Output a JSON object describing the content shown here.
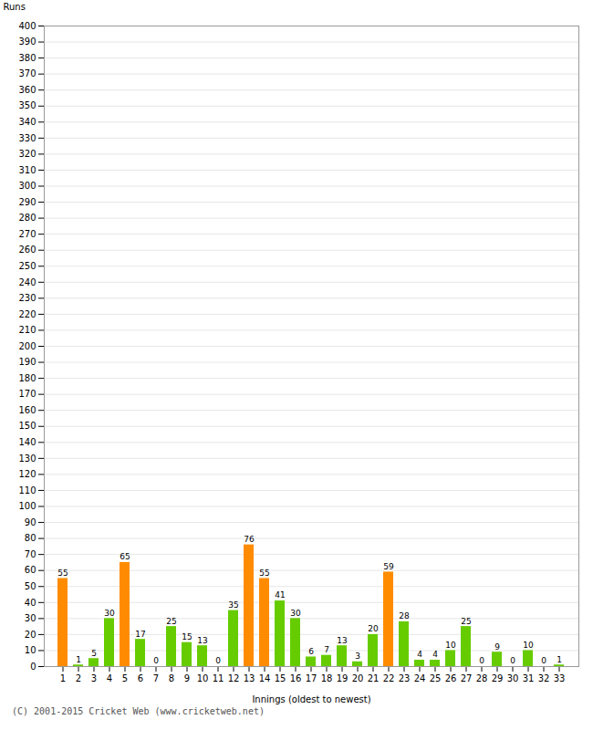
{
  "chart_data": {
    "type": "bar",
    "categories": [
      "1",
      "2",
      "3",
      "4",
      "5",
      "6",
      "7",
      "8",
      "9",
      "10",
      "11",
      "12",
      "13",
      "14",
      "15",
      "16",
      "17",
      "18",
      "19",
      "20",
      "21",
      "22",
      "23",
      "24",
      "25",
      "26",
      "27",
      "28",
      "29",
      "30",
      "31",
      "32",
      "33"
    ],
    "values": [
      55,
      1,
      5,
      30,
      65,
      17,
      0,
      25,
      15,
      13,
      0,
      35,
      76,
      55,
      41,
      30,
      6,
      7,
      13,
      3,
      20,
      59,
      28,
      4,
      4,
      10,
      25,
      0,
      9,
      0,
      10,
      0,
      1
    ],
    "colors": [
      "#ff8c00",
      "#66cc00",
      "#66cc00",
      "#66cc00",
      "#ff8c00",
      "#66cc00",
      "#66cc00",
      "#66cc00",
      "#66cc00",
      "#66cc00",
      "#66cc00",
      "#66cc00",
      "#ff8c00",
      "#ff8c00",
      "#66cc00",
      "#66cc00",
      "#66cc00",
      "#66cc00",
      "#66cc00",
      "#66cc00",
      "#66cc00",
      "#ff8c00",
      "#66cc00",
      "#66cc00",
      "#66cc00",
      "#66cc00",
      "#66cc00",
      "#66cc00",
      "#66cc00",
      "#66cc00",
      "#66cc00",
      "#66cc00",
      "#66cc00"
    ],
    "xlabel": "Innings (oldest to newest)",
    "ylabel": "Runs",
    "ylim": [
      0,
      400
    ],
    "yticks": [
      0,
      10,
      20,
      30,
      40,
      50,
      60,
      70,
      80,
      90,
      100,
      110,
      120,
      130,
      140,
      150,
      160,
      170,
      180,
      190,
      200,
      210,
      220,
      230,
      240,
      250,
      260,
      270,
      280,
      290,
      300,
      310,
      320,
      330,
      340,
      350,
      360,
      370,
      380,
      390,
      400
    ],
    "grid": true,
    "data_labels": true,
    "footer": "(C) 2001-2015 Cricket Web (www.cricketweb.net)"
  }
}
